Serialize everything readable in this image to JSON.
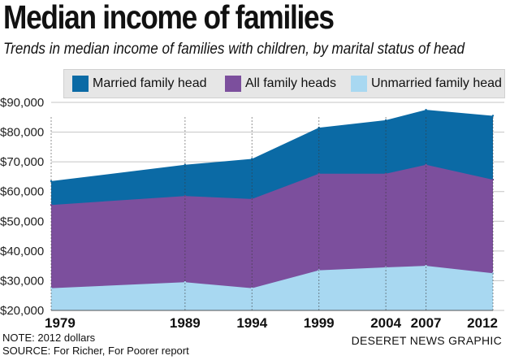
{
  "header": {
    "title": "Median income of families",
    "subtitle": "Trends in median income of families with children, by marital status of head"
  },
  "footer": {
    "note": "NOTE: 2012 dollars",
    "source": "SOURCE: For Richer, For Poorer report",
    "credit": "DESERET NEWS GRAPHIC"
  },
  "chart_data": {
    "type": "area",
    "title": "Median income of families",
    "subtitle": "Trends in median income of families with children, by marital status of head",
    "xlabel": "",
    "ylabel": "",
    "x": [
      "1979",
      "1989",
      "1994",
      "1999",
      "2004",
      "2007",
      "2012"
    ],
    "ylim": [
      20000,
      90000
    ],
    "yticks": [
      "$20,000",
      "$30,000",
      "$40,000",
      "$50,000",
      "$60,000",
      "$70,000",
      "$80,000",
      "$90,000"
    ],
    "ytick_values": [
      20000,
      30000,
      40000,
      50000,
      60000,
      70000,
      80000,
      90000
    ],
    "grid": true,
    "legend_position": "top",
    "series": [
      {
        "name": "Married family head",
        "color": "#0b6aa5",
        "values": [
          63500,
          69000,
          71000,
          81500,
          84000,
          87500,
          85500
        ]
      },
      {
        "name": "All family heads",
        "color": "#7c4f9d",
        "values": [
          55500,
          58500,
          57500,
          66000,
          66000,
          69000,
          64000
        ]
      },
      {
        "name": "Unmarried family head",
        "color": "#a8d8f1",
        "values": [
          27500,
          29500,
          27500,
          33500,
          34500,
          35000,
          32500
        ]
      }
    ]
  }
}
